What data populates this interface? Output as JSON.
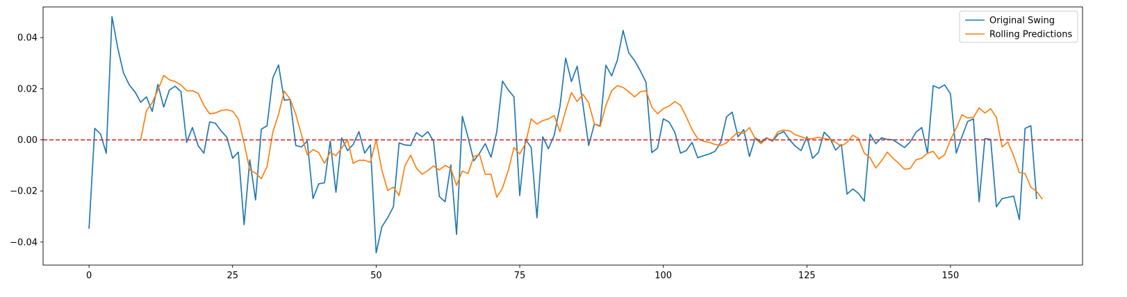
{
  "chart_data": {
    "type": "line",
    "title": "",
    "xlabel": "",
    "ylabel": "",
    "xlim": [
      -8,
      173
    ],
    "ylim": [
      -0.049,
      0.052
    ],
    "xticks": [
      0,
      25,
      50,
      75,
      100,
      125,
      150
    ],
    "yticks": [
      -0.04,
      -0.02,
      0.0,
      0.02,
      0.04
    ],
    "ytick_labels": [
      "−0.04",
      "−0.02",
      "0.00",
      "0.02",
      "0.04"
    ],
    "grid": false,
    "legend": "top-right",
    "reference_line": {
      "y": 0.0,
      "color": "#d62728",
      "style": "dashed"
    },
    "series": [
      {
        "name": "Original Swing",
        "color": "#1f77b4",
        "x_start": 0,
        "values": [
          -0.0348,
          0.0045,
          0.0023,
          -0.0052,
          0.0482,
          0.036,
          0.0262,
          0.0215,
          0.0188,
          0.0147,
          0.0168,
          0.0111,
          0.0217,
          0.0128,
          0.0195,
          0.021,
          0.0189,
          -0.001,
          0.0048,
          -0.0023,
          -0.0052,
          0.007,
          0.0065,
          0.0035,
          0.001,
          -0.0072,
          -0.0048,
          -0.0332,
          -0.0078,
          -0.0235,
          0.0042,
          0.0055,
          0.0242,
          0.0293,
          0.0155,
          0.0158,
          -0.0022,
          -0.0028,
          -0.0005,
          -0.023,
          -0.0172,
          -0.0168,
          -0.0005,
          -0.0205,
          0.0008,
          -0.0042,
          -0.0018,
          0.0032,
          -0.0052,
          -0.002,
          -0.0442,
          -0.034,
          -0.0305,
          -0.0262,
          -0.0012,
          -0.002,
          -0.0022,
          0.0028,
          0.0012,
          0.0032,
          -0.0005,
          -0.0222,
          -0.0242,
          -0.0098,
          -0.037,
          0.0092,
          0.001,
          -0.0082,
          -0.0052,
          -0.0015,
          -0.0068,
          0.0032,
          0.023,
          0.0195,
          0.0168,
          -0.0218,
          0.0002,
          -0.003,
          -0.0305,
          0.0012,
          -0.0035,
          0.0018,
          0.013,
          0.032,
          0.0228,
          0.0288,
          0.014,
          -0.0022,
          0.0062,
          0.0055,
          0.0292,
          0.025,
          0.0312,
          0.0428,
          0.034,
          0.031,
          0.027,
          0.0225,
          -0.005,
          -0.0032,
          0.0082,
          0.007,
          0.003,
          -0.0052,
          -0.0042,
          -0.001,
          -0.007,
          -0.0062,
          -0.0055,
          -0.0045,
          -0.001,
          0.009,
          0.0108,
          0.0012,
          0.004,
          -0.0065,
          0.0008,
          -0.0008,
          0.0008,
          -0.0005,
          0.0022,
          0.0032,
          0.0,
          -0.0025,
          -0.0042,
          0.0012,
          -0.0072,
          -0.005,
          0.003,
          0.0008,
          -0.004,
          -0.0018,
          -0.0212,
          -0.0192,
          -0.021,
          -0.024,
          0.0022,
          -0.0015,
          0.0008,
          0.0002,
          0.0,
          -0.0015,
          -0.003,
          -0.0008,
          0.003,
          0.0048,
          -0.0052,
          0.0212,
          0.0202,
          0.0215,
          0.018,
          -0.0052,
          0.0012,
          0.0072,
          0.0082,
          -0.0242,
          0.0005,
          0.0002,
          -0.0262,
          -0.023,
          -0.0225,
          -0.022,
          -0.0312,
          0.0045,
          0.0055,
          -0.0232
        ]
      },
      {
        "name": "Rolling Predictions",
        "color": "#ff7f0e",
        "x_start": 9,
        "values": [
          0.0002,
          0.0115,
          0.0145,
          0.0195,
          0.0252,
          0.0235,
          0.0228,
          0.0215,
          0.0192,
          0.0192,
          0.0182,
          0.0135,
          0.0102,
          0.0105,
          0.0115,
          0.0118,
          0.0112,
          0.0082,
          -0.0012,
          -0.0118,
          -0.013,
          -0.0152,
          -0.0105,
          0.003,
          0.01,
          0.019,
          0.016,
          0.01,
          0.002,
          -0.0058,
          -0.0038,
          -0.005,
          -0.0092,
          -0.0048,
          -0.0062,
          -0.0032,
          0.0,
          -0.0092,
          -0.008,
          -0.008,
          -0.0088,
          0.0,
          -0.0118,
          -0.0198,
          -0.0185,
          -0.0218,
          -0.0102,
          -0.006,
          -0.011,
          -0.0135,
          -0.012,
          -0.0102,
          -0.0118,
          -0.01,
          -0.0112,
          -0.0178,
          -0.0122,
          -0.0132,
          -0.0065,
          -0.0058,
          -0.0135,
          -0.0135,
          -0.0225,
          -0.0188,
          -0.012,
          -0.003,
          -0.0055,
          -0.0015,
          0.0082,
          0.0062,
          0.0075,
          0.0082,
          0.0095,
          0.0032,
          0.0115,
          0.0185,
          0.015,
          0.0178,
          0.0145,
          0.0062,
          0.0052,
          0.0135,
          0.0192,
          0.0212,
          0.0205,
          0.0188,
          0.0168,
          0.0188,
          0.0192,
          0.0128,
          0.0102,
          0.0122,
          0.0132,
          0.015,
          0.0135,
          0.009,
          0.004,
          0.0005,
          -0.0005,
          -0.001,
          -0.0018,
          -0.0022,
          -0.0012,
          0.001,
          0.003,
          0.0025,
          0.0048,
          0.0005,
          -0.0015,
          0.0005,
          -0.0002,
          0.0032,
          0.0038,
          0.0035,
          0.002,
          0.0012,
          0.0005,
          0.0005,
          0.001,
          0.0005,
          0.0002,
          -0.001,
          -0.0025,
          -0.001,
          0.0018,
          0.0005,
          -0.0052,
          -0.007,
          -0.011,
          -0.0082,
          -0.0048,
          -0.0072,
          -0.0092,
          -0.0115,
          -0.0112,
          -0.0078,
          -0.0072,
          -0.0052,
          -0.0045,
          -0.0075,
          -0.0058,
          0.0,
          0.0045,
          0.0098,
          0.0085,
          0.0088,
          0.0125,
          0.0105,
          0.0122,
          0.0088,
          -0.0028,
          -0.0008,
          -0.0062,
          -0.0128,
          -0.0132,
          -0.0185,
          -0.0202,
          -0.0232
        ]
      }
    ]
  }
}
